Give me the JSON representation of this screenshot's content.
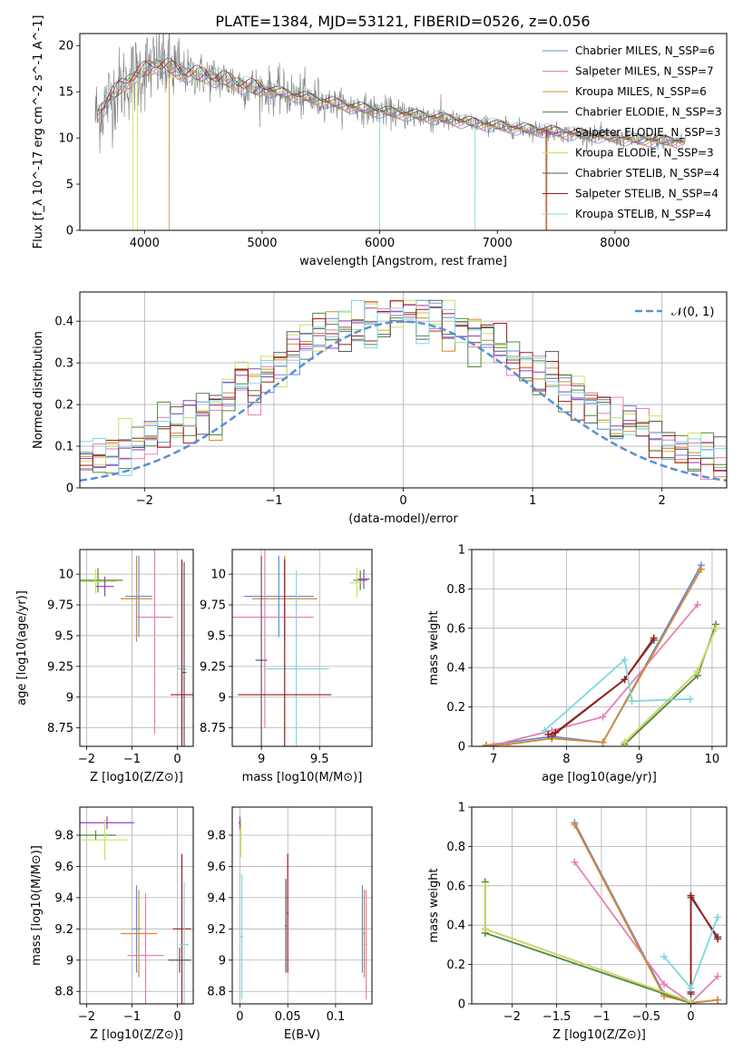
{
  "figure": {
    "title": "PLATE=1384, MJD=53121, FIBERID=0526, z=0.056"
  },
  "palette": {
    "Chabrier MILES": "#5b8fd6",
    "Salpeter MILES": "#e77fb5",
    "Kroupa MILES": "#d9892e",
    "Chabrier ELODIE": "#4f8a3c",
    "Salpeter ELODIE": "#9d3bc0",
    "Kroupa ELODIE": "#c9e25c",
    "Chabrier STELIB": "#5a5a5a",
    "Salpeter STELIB": "#9e1b1b",
    "Kroupa STELIB": "#7fd6e0",
    "data": "#808080",
    "normal": "#5b8fd6"
  },
  "chart_data": [
    {
      "id": "spectrum",
      "type": "line",
      "xlabel": "wavelength [Angstrom, rest frame]",
      "ylabel": "Flux [f_λ 10^-17 erg cm^-2 s^-1 A^-1]",
      "xlim": [
        3450,
        8950
      ],
      "ylim": [
        0,
        21.3
      ],
      "xticks": [
        4000,
        5000,
        6000,
        7000,
        8000
      ],
      "yticks": [
        0,
        5,
        10,
        15,
        20
      ],
      "legend_position": "upper right",
      "continuum": [
        [
          3600,
          12.5
        ],
        [
          3700,
          14.3
        ],
        [
          3800,
          15.6
        ],
        [
          3900,
          16.6
        ],
        [
          4000,
          17.4
        ],
        [
          4100,
          17.9
        ],
        [
          4200,
          17.8
        ],
        [
          4300,
          17.1
        ],
        [
          4400,
          17.0
        ],
        [
          4500,
          16.8
        ],
        [
          4600,
          16.5
        ],
        [
          4700,
          16.3
        ],
        [
          4800,
          15.9
        ],
        [
          4900,
          15.5
        ],
        [
          5000,
          15.3
        ],
        [
          5200,
          14.8
        ],
        [
          5400,
          14.3
        ],
        [
          5600,
          13.8
        ],
        [
          5800,
          13.3
        ],
        [
          6000,
          12.9
        ],
        [
          6200,
          12.6
        ],
        [
          6400,
          12.3
        ],
        [
          6600,
          12.0
        ],
        [
          6800,
          11.6
        ],
        [
          7000,
          11.3
        ],
        [
          7200,
          11.0
        ],
        [
          7400,
          10.8
        ],
        [
          7600,
          10.5
        ],
        [
          7800,
          10.3
        ],
        [
          8000,
          10.0
        ],
        [
          8200,
          9.8
        ],
        [
          8400,
          9.7
        ],
        [
          8600,
          9.6
        ]
      ],
      "series": [
        {
          "name": "Chabrier MILES",
          "legend": "Chabrier MILES, N_SSP=6",
          "nssp": 6
        },
        {
          "name": "Salpeter MILES",
          "legend": "Salpeter MILES, N_SSP=7",
          "nssp": 7
        },
        {
          "name": "Kroupa MILES",
          "legend": "Kroupa MILES, N_SSP=6",
          "nssp": 6
        },
        {
          "name": "Chabrier ELODIE",
          "legend": "Chabrier ELODIE, N_SSP=3",
          "nssp": 3
        },
        {
          "name": "Salpeter ELODIE",
          "legend": "Salpeter ELODIE, N_SSP=3",
          "nssp": 3
        },
        {
          "name": "Kroupa ELODIE",
          "legend": "Kroupa ELODIE, N_SSP=3",
          "nssp": 3
        },
        {
          "name": "Chabrier STELIB",
          "legend": "Chabrier STELIB, N_SSP=4",
          "nssp": 4
        },
        {
          "name": "Salpeter STELIB",
          "legend": "Salpeter STELIB, N_SSP=4",
          "nssp": 4
        },
        {
          "name": "Kroupa STELIB",
          "legend": "Kroupa STELIB, N_SSP=4",
          "nssp": 4
        }
      ]
    },
    {
      "id": "residuals",
      "type": "histogram",
      "xlabel": "(data-model)/error",
      "ylabel": "Normed distribution",
      "xlim": [
        -2.5,
        2.5
      ],
      "ylim": [
        0,
        0.47
      ],
      "xticks": [
        -2,
        -1,
        0,
        1,
        2
      ],
      "yticks": [
        0.0,
        0.1,
        0.2,
        0.3,
        0.4
      ],
      "grid": true,
      "legend_position": "upper right",
      "reference_curve": {
        "name": "𝒩(0, 1)",
        "mean": 0,
        "sigma": 1
      },
      "bin_width": 0.1
    },
    {
      "id": "age_vs_Z",
      "type": "errorbar",
      "xlabel": "Z [log10(Z/Z⊙)]",
      "ylabel": "age [log10(age/yr)]",
      "xlim": [
        -2.15,
        0.35
      ],
      "ylim": [
        8.6,
        10.2
      ],
      "xticks": [
        -2,
        -1,
        0
      ],
      "yticks": [
        8.75,
        9.0,
        9.25,
        9.5,
        9.75,
        10.0
      ],
      "grid": true,
      "points": [
        {
          "series": "Chabrier ELODIE",
          "x": -1.75,
          "xerr": 0.55,
          "y": 9.95,
          "yerr": 0.1
        },
        {
          "series": "Kroupa ELODIE",
          "x": -1.8,
          "xerr": 0.45,
          "y": 9.94,
          "yerr": 0.1
        },
        {
          "series": "Salpeter ELODIE",
          "x": -1.6,
          "xerr": 0.2,
          "y": 9.9,
          "yerr": 0.08
        },
        {
          "series": "Kroupa MILES",
          "x": -0.9,
          "xerr": 0.35,
          "y": 9.8,
          "yerr": 0.35
        },
        {
          "series": "Chabrier MILES",
          "x": -0.85,
          "xerr": 0.3,
          "y": 9.82,
          "yerr": 0.33
        },
        {
          "series": "Salpeter MILES",
          "x": -0.5,
          "xerr": 0.4,
          "y": 9.65,
          "yerr": 0.95
        },
        {
          "series": "Kroupa STELIB",
          "x": 0.1,
          "xerr": 0.1,
          "y": 9.23,
          "yerr": 0.8
        },
        {
          "series": "Salpeter STELIB",
          "x": 0.1,
          "xerr": 0.25,
          "y": 9.02,
          "yerr": 1.1
        },
        {
          "series": "Chabrier STELIB",
          "x": 0.15,
          "xerr": 0.05,
          "y": 9.2,
          "yerr": 0.9
        }
      ]
    },
    {
      "id": "age_vs_mass",
      "type": "errorbar",
      "xlabel": "mass [log10(M/M⊙)]",
      "ylabel": "",
      "xlim": [
        8.75,
        9.95
      ],
      "ylim": [
        8.6,
        10.2
      ],
      "xticks": [
        9.0,
        9.5
      ],
      "yticks": [
        8.75,
        9.0,
        9.25,
        9.5,
        9.75,
        10.0
      ],
      "grid": true,
      "points": [
        {
          "series": "Chabrier ELODIE",
          "x": 9.85,
          "xerr": 0.06,
          "y": 9.95,
          "yerr": 0.08
        },
        {
          "series": "Salpeter ELODIE",
          "x": 9.88,
          "xerr": 0.05,
          "y": 9.96,
          "yerr": 0.08
        },
        {
          "series": "Kroupa ELODIE",
          "x": 9.82,
          "xerr": 0.06,
          "y": 9.93,
          "yerr": 0.12
        },
        {
          "series": "Kroupa MILES",
          "x": 9.2,
          "xerr": 0.28,
          "y": 9.8,
          "yerr": 0.35
        },
        {
          "series": "Chabrier MILES",
          "x": 9.15,
          "xerr": 0.3,
          "y": 9.82,
          "yerr": 0.33
        },
        {
          "series": "Salpeter MILES",
          "x": 9.03,
          "xerr": 0.42,
          "y": 9.65,
          "yerr": 0.9
        },
        {
          "series": "Kroupa STELIB",
          "x": 9.3,
          "xerr": 0.28,
          "y": 9.23,
          "yerr": 0.8
        },
        {
          "series": "Salpeter STELIB",
          "x": 9.2,
          "xerr": 0.4,
          "y": 9.02,
          "yerr": 1.1
        },
        {
          "series": "Chabrier STELIB",
          "x": 9.0,
          "xerr": 0.05,
          "y": 9.3,
          "yerr": 0.85
        }
      ]
    },
    {
      "id": "weight_vs_age",
      "type": "line",
      "xlabel": "age [log10(age/yr)]",
      "ylabel": "mass weight",
      "xlim": [
        6.7,
        10.2
      ],
      "ylim": [
        0,
        1.0
      ],
      "xticks": [
        7,
        8,
        9,
        10
      ],
      "yticks": [
        0.0,
        0.2,
        0.4,
        0.6,
        0.8,
        1.0
      ],
      "grid": true,
      "series": [
        {
          "name": "Chabrier MILES",
          "points": [
            [
              6.9,
              0.005
            ],
            [
              7.8,
              0.05
            ],
            [
              8.5,
              0.02
            ],
            [
              9.85,
              0.92
            ]
          ]
        },
        {
          "name": "Salpeter MILES",
          "points": [
            [
              7.0,
              0.005
            ],
            [
              7.8,
              0.08
            ],
            [
              8.5,
              0.15
            ],
            [
              9.8,
              0.72
            ]
          ]
        },
        {
          "name": "Kroupa MILES",
          "points": [
            [
              6.9,
              0.005
            ],
            [
              7.2,
              0.01
            ],
            [
              7.8,
              0.04
            ],
            [
              8.5,
              0.02
            ],
            [
              9.85,
              0.9
            ]
          ]
        },
        {
          "name": "Chabrier ELODIE",
          "points": [
            [
              8.8,
              0.01
            ],
            [
              9.8,
              0.36
            ],
            [
              10.05,
              0.62
            ]
          ]
        },
        {
          "name": "Salpeter ELODIE",
          "points": [
            [
              8.8,
              0.02
            ],
            [
              9.8,
              0.38
            ],
            [
              10.05,
              0.6
            ]
          ]
        },
        {
          "name": "Kroupa ELODIE",
          "points": [
            [
              8.8,
              0.02
            ],
            [
              9.8,
              0.38
            ],
            [
              10.05,
              0.6
            ]
          ]
        },
        {
          "name": "Chabrier STELIB",
          "points": [
            [
              7.8,
              0.05
            ],
            [
              8.8,
              0.34
            ],
            [
              9.2,
              0.54
            ]
          ]
        },
        {
          "name": "Salpeter STELIB",
          "points": [
            [
              7.75,
              0.06
            ],
            [
              7.85,
              0.07
            ],
            [
              8.8,
              0.34
            ],
            [
              9.2,
              0.55
            ]
          ]
        },
        {
          "name": "Kroupa STELIB",
          "points": [
            [
              7.7,
              0.08
            ],
            [
              8.8,
              0.44
            ],
            [
              8.9,
              0.23
            ],
            [
              9.7,
              0.24
            ]
          ]
        }
      ]
    },
    {
      "id": "mass_vs_Z",
      "type": "errorbar",
      "xlabel": "Z [log10(Z/Z⊙)]",
      "ylabel": "mass [log10(M/M⊙)]",
      "xlim": [
        -2.15,
        0.35
      ],
      "ylim": [
        8.72,
        9.98
      ],
      "xticks": [
        -2,
        -1,
        0
      ],
      "yticks": [
        8.8,
        9.0,
        9.2,
        9.4,
        9.6,
        9.8
      ],
      "grid": true,
      "points": [
        {
          "series": "Salpeter ELODIE",
          "x": -1.55,
          "xerr": 0.6,
          "y": 9.88,
          "yerr": 0.04
        },
        {
          "series": "Chabrier ELODIE",
          "x": -1.8,
          "xerr": 0.45,
          "y": 9.8,
          "yerr": 0.03
        },
        {
          "series": "Kroupa ELODIE",
          "x": -1.6,
          "xerr": 0.5,
          "y": 9.77,
          "yerr": 0.13
        },
        {
          "series": "Chabrier MILES",
          "x": -0.9,
          "xerr": 0.1,
          "y": 9.2,
          "yerr": 0.28
        },
        {
          "series": "Kroupa MILES",
          "x": -0.85,
          "xerr": 0.4,
          "y": 9.17,
          "yerr": 0.28
        },
        {
          "series": "Salpeter MILES",
          "x": -0.7,
          "xerr": 0.4,
          "y": 9.03,
          "yerr": 0.4
        },
        {
          "series": "Salpeter STELIB",
          "x": 0.1,
          "xerr": 0.2,
          "y": 9.2,
          "yerr": 0.48
        },
        {
          "series": "Kroupa STELIB",
          "x": 0.15,
          "xerr": 0.1,
          "y": 9.1,
          "yerr": 0.4
        },
        {
          "series": "Chabrier STELIB",
          "x": 0.05,
          "xerr": 0.25,
          "y": 9.0,
          "yerr": 0.08
        }
      ]
    },
    {
      "id": "mass_vs_ebv",
      "type": "errorbar",
      "xlabel": "E(B-V)",
      "ylabel": "",
      "xlim": [
        -0.008,
        0.138
      ],
      "ylim": [
        8.72,
        9.98
      ],
      "xticks": [
        0.0,
        0.05,
        0.1
      ],
      "yticks": [
        8.8,
        9.0,
        9.2,
        9.4,
        9.6,
        9.8
      ],
      "grid": true,
      "points": [
        {
          "series": "Salpeter ELODIE",
          "x": 0.0,
          "xerr": 0.0015,
          "y": 9.88,
          "yerr": 0.04
        },
        {
          "series": "Kroupa ELODIE",
          "x": 0.001,
          "xerr": 0.0015,
          "y": 9.78,
          "yerr": 0.12
        },
        {
          "series": "Kroupa STELIB",
          "x": 0.002,
          "xerr": 0.0015,
          "y": 9.15,
          "yerr": 0.4
        },
        {
          "series": "Chabrier STELIB",
          "x": 0.048,
          "xerr": 0.001,
          "y": 9.22,
          "yerr": 0.3
        },
        {
          "series": "Salpeter STELIB",
          "x": 0.05,
          "xerr": 0.001,
          "y": 9.3,
          "yerr": 0.38
        },
        {
          "series": "Chabrier MILES",
          "x": 0.128,
          "xerr": 0.001,
          "y": 9.2,
          "yerr": 0.28
        },
        {
          "series": "Kroupa MILES",
          "x": 0.13,
          "xerr": 0.001,
          "y": 9.17,
          "yerr": 0.28
        },
        {
          "series": "Salpeter MILES",
          "x": 0.132,
          "xerr": 0.001,
          "y": 9.1,
          "yerr": 0.35
        }
      ]
    },
    {
      "id": "weight_vs_Z",
      "type": "line",
      "xlabel": "Z [log10(Z/Z⊙)]",
      "ylabel": "mass weight",
      "xlim": [
        -2.45,
        0.4
      ],
      "ylim": [
        0,
        1.0
      ],
      "xticks": [
        -2.0,
        -1.5,
        -1.0,
        -0.5,
        0.0
      ],
      "yticks": [
        0.0,
        0.2,
        0.4,
        0.6,
        0.8,
        1.0
      ],
      "grid": true,
      "series": [
        {
          "name": "Chabrier MILES",
          "points": [
            [
              -1.3,
              0.92
            ],
            [
              -0.3,
              0.05
            ],
            [
              0.0,
              0.005
            ],
            [
              0.3,
              0.02
            ]
          ]
        },
        {
          "name": "Salpeter MILES",
          "points": [
            [
              -1.3,
              0.72
            ],
            [
              -0.3,
              0.1
            ],
            [
              0.0,
              0.005
            ],
            [
              0.3,
              0.14
            ]
          ]
        },
        {
          "name": "Kroupa MILES",
          "points": [
            [
              -1.3,
              0.91
            ],
            [
              -0.3,
              0.04
            ],
            [
              0.0,
              0.005
            ],
            [
              0.3,
              0.02
            ]
          ]
        },
        {
          "name": "Chabrier ELODIE",
          "points": [
            [
              -2.3,
              0.62
            ],
            [
              -2.3,
              0.36
            ],
            [
              0.0,
              0.005
            ]
          ]
        },
        {
          "name": "Salpeter ELODIE",
          "points": [
            [
              -2.3,
              0.6
            ],
            [
              -2.3,
              0.38
            ],
            [
              0.0,
              0.01
            ]
          ]
        },
        {
          "name": "Kroupa ELODIE",
          "points": [
            [
              -2.3,
              0.6
            ],
            [
              -2.3,
              0.38
            ],
            [
              0.0,
              0.01
            ]
          ]
        },
        {
          "name": "Chabrier STELIB",
          "points": [
            [
              0.0,
              0.05
            ],
            [
              0.0,
              0.54
            ],
            [
              0.3,
              0.34
            ]
          ]
        },
        {
          "name": "Salpeter STELIB",
          "points": [
            [
              0.0,
              0.06
            ],
            [
              0.0,
              0.55
            ],
            [
              0.3,
              0.33
            ]
          ]
        },
        {
          "name": "Kroupa STELIB",
          "points": [
            [
              -0.3,
              0.24
            ],
            [
              0.0,
              0.08
            ],
            [
              0.3,
              0.44
            ]
          ]
        }
      ]
    }
  ]
}
